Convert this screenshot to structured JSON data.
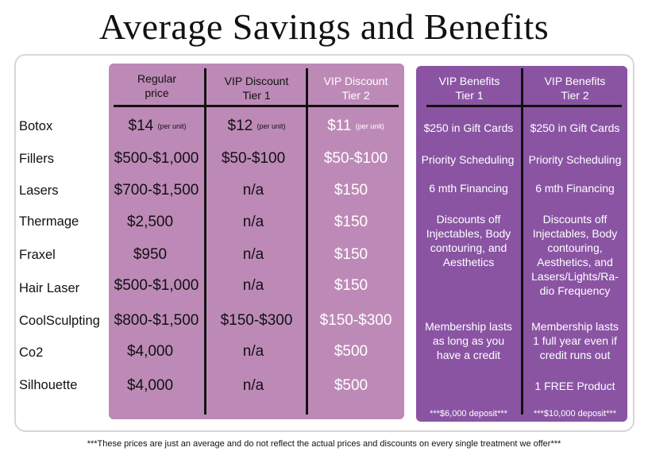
{
  "title": "Average Savings and Benefits",
  "columns": {
    "regular": "Regular\nprice",
    "vip1": "VIP Discount\nTier 1",
    "vip2": "VIP Discount\nTier 2",
    "ben1": "VIP Benefits\nTier 1",
    "ben2": "VIP Benefits\nTier 2"
  },
  "rows": [
    {
      "name": "Botox",
      "regular": "$14",
      "regular_unit": "(per unit)",
      "vip1": "$12",
      "vip1_unit": "(per unit)",
      "vip2": "$11",
      "vip2_unit": "(per unit)"
    },
    {
      "name": "Fillers",
      "regular": "$500-$1,000",
      "vip1": "$50-$100",
      "vip2": "$50-$100"
    },
    {
      "name": "Lasers",
      "regular": "$700-$1,500",
      "vip1": "n/a",
      "vip2": "$150"
    },
    {
      "name": "Thermage",
      "regular": "$2,500",
      "vip1": "n/a",
      "vip2": "$150"
    },
    {
      "name": "Fraxel",
      "regular": "$950",
      "vip1": "n/a",
      "vip2": "$150"
    },
    {
      "name": "Hair Laser",
      "regular": "$500-$1,000",
      "vip1": "n/a",
      "vip2": "$150"
    },
    {
      "name": "CoolSculpting",
      "regular": "$800-$1,500",
      "vip1": "$150-$300",
      "vip2": "$150-$300"
    },
    {
      "name": "Co2",
      "regular": "$4,000",
      "vip1": "n/a",
      "vip2": "$500"
    },
    {
      "name": "Silhouette",
      "regular": "$4,000",
      "vip1": "n/a",
      "vip2": "$500"
    }
  ],
  "benefits": {
    "tier1": {
      "gift": "$250 in Gift Cards",
      "scheduling": "Priority Scheduling",
      "financing": "6 mth Financing",
      "discounts": "Discounts off\nInjectables, Body\ncontouring, and\nAesthetics",
      "membership": "Membership lasts\nas long as you\nhave a credit",
      "product": "",
      "deposit": "***$6,000 deposit***"
    },
    "tier2": {
      "gift": "$250 in Gift Cards",
      "scheduling": "Priority Scheduling",
      "financing": "6 mth Financing",
      "discounts": "Discounts off\nInjectables, Body\ncontouring,\nAesthetics, and\nLasers/Lights/Ra-\ndio Frequency",
      "membership": "Membership lasts\n1 full year even if\ncredit runs out",
      "product": "1 FREE Product",
      "deposit": "***$10,000 deposit***"
    }
  },
  "footnote": "***These prices are just an average and do not reflect the actual prices and discounts on every single treatment we offer***",
  "colors": {
    "pricing_panel": "#bd8ab7",
    "benefits_panel": "#8a54a3",
    "frame_border": "#d7d7d7"
  }
}
